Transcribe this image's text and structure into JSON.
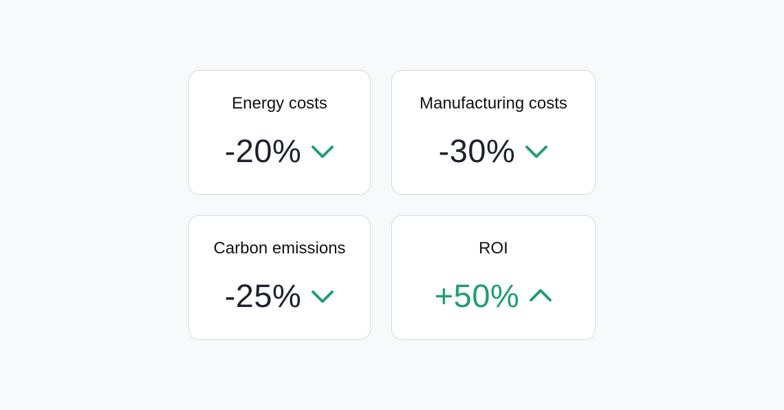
{
  "metrics": [
    {
      "label": "Energy costs",
      "value": "-20%",
      "trend": "down",
      "trend_icon": "chevron-down-icon",
      "value_color": "#1c212c"
    },
    {
      "label": "Manufacturing costs",
      "value": "-30%",
      "trend": "down",
      "trend_icon": "chevron-down-icon",
      "value_color": "#1c212c"
    },
    {
      "label": "Carbon emissions",
      "value": "-25%",
      "trend": "down",
      "trend_icon": "chevron-down-icon",
      "value_color": "#1c212c"
    },
    {
      "label": "ROI",
      "value": "+50%",
      "trend": "up",
      "trend_icon": "chevron-up-icon",
      "value_color": "#1f9e6e"
    }
  ],
  "colors": {
    "accent_green": "#1f9e6e",
    "text_dark": "#1c212c",
    "card_border": "#d6d9de",
    "background": "#f8f9fb"
  }
}
